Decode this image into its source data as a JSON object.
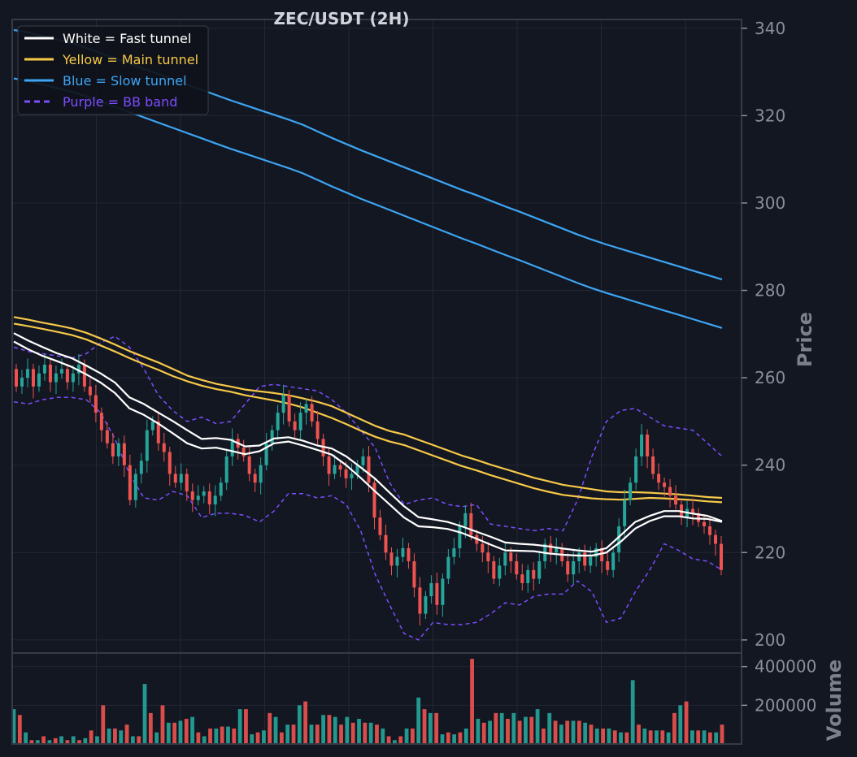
{
  "chart_data": {
    "type": "line",
    "title": "ZEC/USDT (2H)",
    "price_panel": {
      "ylabel": "Price",
      "ylim": [
        197,
        342
      ],
      "yticks": [
        "200",
        "220",
        "240",
        "260",
        "280",
        "300",
        "320",
        "340"
      ],
      "grid": true,
      "legend_placement": "top-left",
      "legend": [
        {
          "label": "White = Fast tunnel",
          "color": "#ffffff",
          "style": "solid"
        },
        {
          "label": "Yellow = Main tunnel",
          "color": "#f7c948",
          "style": "solid"
        },
        {
          "label": "Blue = Slow tunnel",
          "color": "#3da5f4",
          "style": "solid"
        },
        {
          "label": "Purple = BB band",
          "color": "#7c4dff",
          "style": "dashed"
        }
      ],
      "candles_open_close": [
        [
          262,
          258
        ],
        [
          258,
          260
        ],
        [
          260,
          262
        ],
        [
          262,
          258
        ],
        [
          258,
          261
        ],
        [
          261,
          263
        ],
        [
          263,
          259
        ],
        [
          259,
          261
        ],
        [
          261,
          262
        ],
        [
          262,
          259
        ],
        [
          259,
          261
        ],
        [
          261,
          263
        ],
        [
          263,
          258
        ],
        [
          258,
          256
        ],
        [
          256,
          252
        ],
        [
          252,
          248
        ],
        [
          248,
          245
        ],
        [
          245,
          242
        ],
        [
          242,
          245
        ],
        [
          245,
          240
        ],
        [
          240,
          232
        ],
        [
          232,
          238
        ],
        [
          238,
          241
        ],
        [
          241,
          248
        ],
        [
          248,
          250
        ],
        [
          250,
          245
        ],
        [
          245,
          243
        ],
        [
          243,
          238
        ],
        [
          238,
          236
        ],
        [
          236,
          238
        ],
        [
          238,
          234
        ],
        [
          234,
          232
        ],
        [
          232,
          233
        ],
        [
          233,
          234
        ],
        [
          234,
          231
        ],
        [
          231,
          233
        ],
        [
          233,
          236
        ],
        [
          236,
          242
        ],
        [
          242,
          246
        ],
        [
          246,
          244
        ],
        [
          244,
          242
        ],
        [
          242,
          238
        ],
        [
          238,
          236
        ],
        [
          236,
          240
        ],
        [
          240,
          245
        ],
        [
          245,
          248
        ],
        [
          248,
          252
        ],
        [
          252,
          256
        ],
        [
          256,
          250
        ],
        [
          250,
          248
        ],
        [
          248,
          252
        ],
        [
          252,
          254
        ],
        [
          254,
          250
        ],
        [
          250,
          246
        ],
        [
          246,
          242
        ],
        [
          242,
          238
        ],
        [
          238,
          240
        ],
        [
          240,
          239
        ],
        [
          239,
          237
        ],
        [
          237,
          238
        ],
        [
          238,
          240
        ],
        [
          240,
          242
        ],
        [
          242,
          236
        ],
        [
          236,
          228
        ],
        [
          228,
          224
        ],
        [
          224,
          220
        ],
        [
          220,
          217
        ],
        [
          217,
          219
        ],
        [
          219,
          221
        ],
        [
          221,
          218
        ],
        [
          218,
          212
        ],
        [
          212,
          206
        ],
        [
          206,
          210
        ],
        [
          210,
          213
        ],
        [
          213,
          208
        ],
        [
          208,
          214
        ],
        [
          214,
          219
        ],
        [
          219,
          221
        ],
        [
          221,
          226
        ],
        [
          226,
          229
        ],
        [
          229,
          224
        ],
        [
          224,
          222
        ],
        [
          222,
          220
        ],
        [
          220,
          218
        ],
        [
          218,
          214
        ],
        [
          214,
          217
        ],
        [
          217,
          220
        ],
        [
          220,
          218
        ],
        [
          218,
          215
        ],
        [
          215,
          213
        ],
        [
          213,
          216
        ],
        [
          216,
          214
        ],
        [
          214,
          218
        ],
        [
          218,
          222
        ],
        [
          222,
          220
        ],
        [
          220,
          221
        ],
        [
          221,
          218
        ],
        [
          218,
          215
        ],
        [
          215,
          218
        ],
        [
          218,
          220
        ],
        [
          220,
          217
        ],
        [
          217,
          219
        ],
        [
          219,
          221
        ],
        [
          221,
          218
        ],
        [
          218,
          216
        ],
        [
          216,
          220
        ],
        [
          220,
          226
        ],
        [
          226,
          232
        ],
        [
          232,
          236
        ],
        [
          236,
          242
        ],
        [
          242,
          247
        ],
        [
          247,
          242
        ],
        [
          242,
          238
        ],
        [
          238,
          236
        ],
        [
          236,
          235
        ],
        [
          235,
          233
        ],
        [
          233,
          231
        ],
        [
          231,
          228
        ],
        [
          228,
          230
        ],
        [
          230,
          229
        ],
        [
          229,
          227
        ],
        [
          227,
          226
        ],
        [
          226,
          224
        ],
        [
          224,
          222
        ],
        [
          222,
          216
        ]
      ],
      "fast_tunnel": {
        "upper": [
          270.2,
          268.5,
          267.0,
          265.6,
          264.5,
          262.8,
          261.0,
          258.9,
          255.5,
          254.0,
          252.0,
          250.1,
          248.0,
          246.0,
          246.2,
          245.8,
          244.3,
          244.5,
          246.1,
          246.4,
          245.6,
          244.5,
          243.8,
          242.0,
          239.5,
          236.9,
          233.7,
          230.6,
          228.1,
          227.6,
          227.0,
          226.0,
          224.8,
          223.6,
          222.3,
          222.0,
          221.8,
          221.4,
          220.9,
          220.5,
          220.2,
          221.0,
          224.0,
          227.0,
          228.4,
          229.5,
          229.5,
          228.9,
          228.4,
          227.2
        ],
        "lower": [
          268.3,
          266.5,
          265.0,
          263.8,
          262.5,
          260.8,
          258.9,
          256.5,
          253.0,
          251.5,
          249.5,
          247.3,
          245.0,
          243.8,
          244.0,
          243.3,
          242.5,
          243.2,
          245.0,
          245.4,
          244.5,
          243.5,
          242.4,
          240.0,
          237.1,
          234.0,
          231.0,
          228.0,
          226.0,
          225.8,
          225.4,
          224.5,
          223.2,
          221.8,
          220.5,
          220.4,
          220.3,
          219.8,
          219.5,
          219.3,
          219.3,
          220.0,
          222.5,
          225.5,
          227.2,
          228.3,
          228.3,
          227.8,
          227.7,
          227.0
        ]
      },
      "main_tunnel": {
        "upper": [
          273.9,
          273.3,
          272.6,
          272.0,
          271.3,
          270.3,
          269.0,
          267.6,
          266.1,
          264.8,
          263.5,
          262.0,
          260.5,
          259.5,
          258.6,
          258.0,
          257.3,
          256.9,
          256.5,
          256.0,
          255.3,
          254.5,
          253.5,
          252.0,
          250.5,
          249.0,
          247.8,
          247.0,
          245.8,
          244.6,
          243.4,
          242.2,
          241.2,
          240.1,
          239.1,
          238.1,
          237.1,
          236.3,
          235.5,
          235.0,
          234.5,
          234.0,
          233.8,
          233.8,
          233.7,
          233.5,
          233.3,
          233.0,
          232.7,
          232.5
        ],
        "lower": [
          272.4,
          271.8,
          271.2,
          270.5,
          269.8,
          268.8,
          267.4,
          266.0,
          264.5,
          263.1,
          261.8,
          260.4,
          259.2,
          258.2,
          257.4,
          256.8,
          256.0,
          255.4,
          254.8,
          254.1,
          253.2,
          252.0,
          250.8,
          249.4,
          247.9,
          246.5,
          245.4,
          244.6,
          243.4,
          242.2,
          241.0,
          239.8,
          238.8,
          237.7,
          236.7,
          235.7,
          234.7,
          233.9,
          233.2,
          232.8,
          232.4,
          232.2,
          232.1,
          232.3,
          232.5,
          232.4,
          232.2,
          232.0,
          231.7,
          231.5
        ]
      },
      "slow_tunnel": {
        "upper": [
          339.6,
          339.0,
          338.2,
          337.4,
          336.6,
          335.5,
          334.3,
          333.1,
          331.9,
          330.7,
          329.5,
          328.3,
          327.1,
          325.9,
          324.7,
          323.5,
          322.4,
          321.3,
          320.2,
          319.1,
          317.9,
          316.4,
          314.9,
          313.5,
          312.1,
          310.8,
          309.5,
          308.2,
          306.9,
          305.6,
          304.3,
          303.0,
          301.8,
          300.5,
          299.2,
          298.0,
          296.7,
          295.4,
          294.1,
          292.8,
          291.6,
          290.5,
          289.5,
          288.5,
          287.5,
          286.5,
          285.5,
          284.5,
          283.5,
          282.5
        ],
        "lower": [
          328.5,
          327.9,
          327.1,
          326.3,
          325.5,
          324.4,
          323.2,
          322.0,
          320.8,
          319.6,
          318.4,
          317.2,
          316.0,
          314.8,
          313.6,
          312.4,
          311.3,
          310.2,
          309.1,
          308.0,
          306.8,
          305.3,
          303.8,
          302.4,
          301.0,
          299.7,
          298.4,
          297.1,
          295.8,
          294.5,
          293.2,
          291.9,
          290.7,
          289.4,
          288.1,
          286.9,
          285.6,
          284.3,
          283.0,
          281.7,
          280.5,
          279.4,
          278.4,
          277.4,
          276.4,
          275.4,
          274.4,
          273.4,
          272.4,
          271.4
        ]
      },
      "bb_band": {
        "upper": [
          267.0,
          266.0,
          265.5,
          265.0,
          264.5,
          265.5,
          268.0,
          269.5,
          267.0,
          262.0,
          256.0,
          252.5,
          250.0,
          251.0,
          249.5,
          250.0,
          254.0,
          258.0,
          258.5,
          258.0,
          257.5,
          257.0,
          255.0,
          252.0,
          248.0,
          244.0,
          236.0,
          231.0,
          232.0,
          232.5,
          231.0,
          230.5,
          231.0,
          226.5,
          226.0,
          225.5,
          225.0,
          225.5,
          225.0,
          232.0,
          242.0,
          250.0,
          252.5,
          253.0,
          251.0,
          249.0,
          248.5,
          248.0,
          245.0,
          242.0
        ],
        "lower": [
          254.5,
          254.0,
          255.0,
          255.5,
          255.5,
          255.0,
          252.0,
          246.0,
          238.0,
          232.5,
          232.0,
          234.0,
          233.0,
          228.0,
          229.0,
          229.0,
          228.5,
          227.0,
          229.5,
          233.5,
          233.5,
          232.5,
          233.0,
          231.0,
          225.0,
          215.0,
          208.0,
          201.5,
          200.0,
          204.0,
          203.5,
          203.5,
          204.0,
          206.0,
          208.5,
          208.0,
          210.0,
          210.5,
          210.5,
          213.5,
          211.0,
          204.0,
          205.0,
          211.0,
          216.0,
          222.0,
          220.5,
          218.5,
          218.0,
          216.0
        ]
      }
    },
    "volume_panel": {
      "ylabel": "Volume",
      "ylim": [
        0,
        470000
      ],
      "yticks": [
        "200000",
        "400000"
      ],
      "grid": true,
      "values": [
        180000,
        150000,
        60000,
        20000,
        20000,
        40000,
        20000,
        30000,
        40000,
        20000,
        40000,
        20000,
        30000,
        70000,
        40000,
        200000,
        80000,
        80000,
        70000,
        100000,
        40000,
        40000,
        310000,
        160000,
        60000,
        200000,
        110000,
        110000,
        120000,
        130000,
        140000,
        60000,
        40000,
        80000,
        80000,
        90000,
        90000,
        80000,
        180000,
        180000,
        50000,
        60000,
        70000,
        160000,
        140000,
        60000,
        100000,
        100000,
        200000,
        220000,
        100000,
        100000,
        150000,
        150000,
        140000,
        100000,
        140000,
        110000,
        130000,
        110000,
        110000,
        100000,
        80000,
        40000,
        20000,
        40000,
        80000,
        80000,
        240000,
        180000,
        160000,
        160000,
        50000,
        60000,
        50000,
        60000,
        80000,
        440000,
        130000,
        110000,
        120000,
        160000,
        160000,
        130000,
        160000,
        120000,
        140000,
        140000,
        180000,
        80000,
        160000,
        120000,
        100000,
        120000,
        120000,
        120000,
        110000,
        100000,
        80000,
        80000,
        80000,
        70000,
        60000,
        60000,
        330000,
        100000,
        80000,
        70000,
        70000,
        70000,
        60000,
        160000,
        200000,
        220000,
        70000,
        70000,
        70000,
        60000,
        60000,
        100000
      ]
    }
  }
}
